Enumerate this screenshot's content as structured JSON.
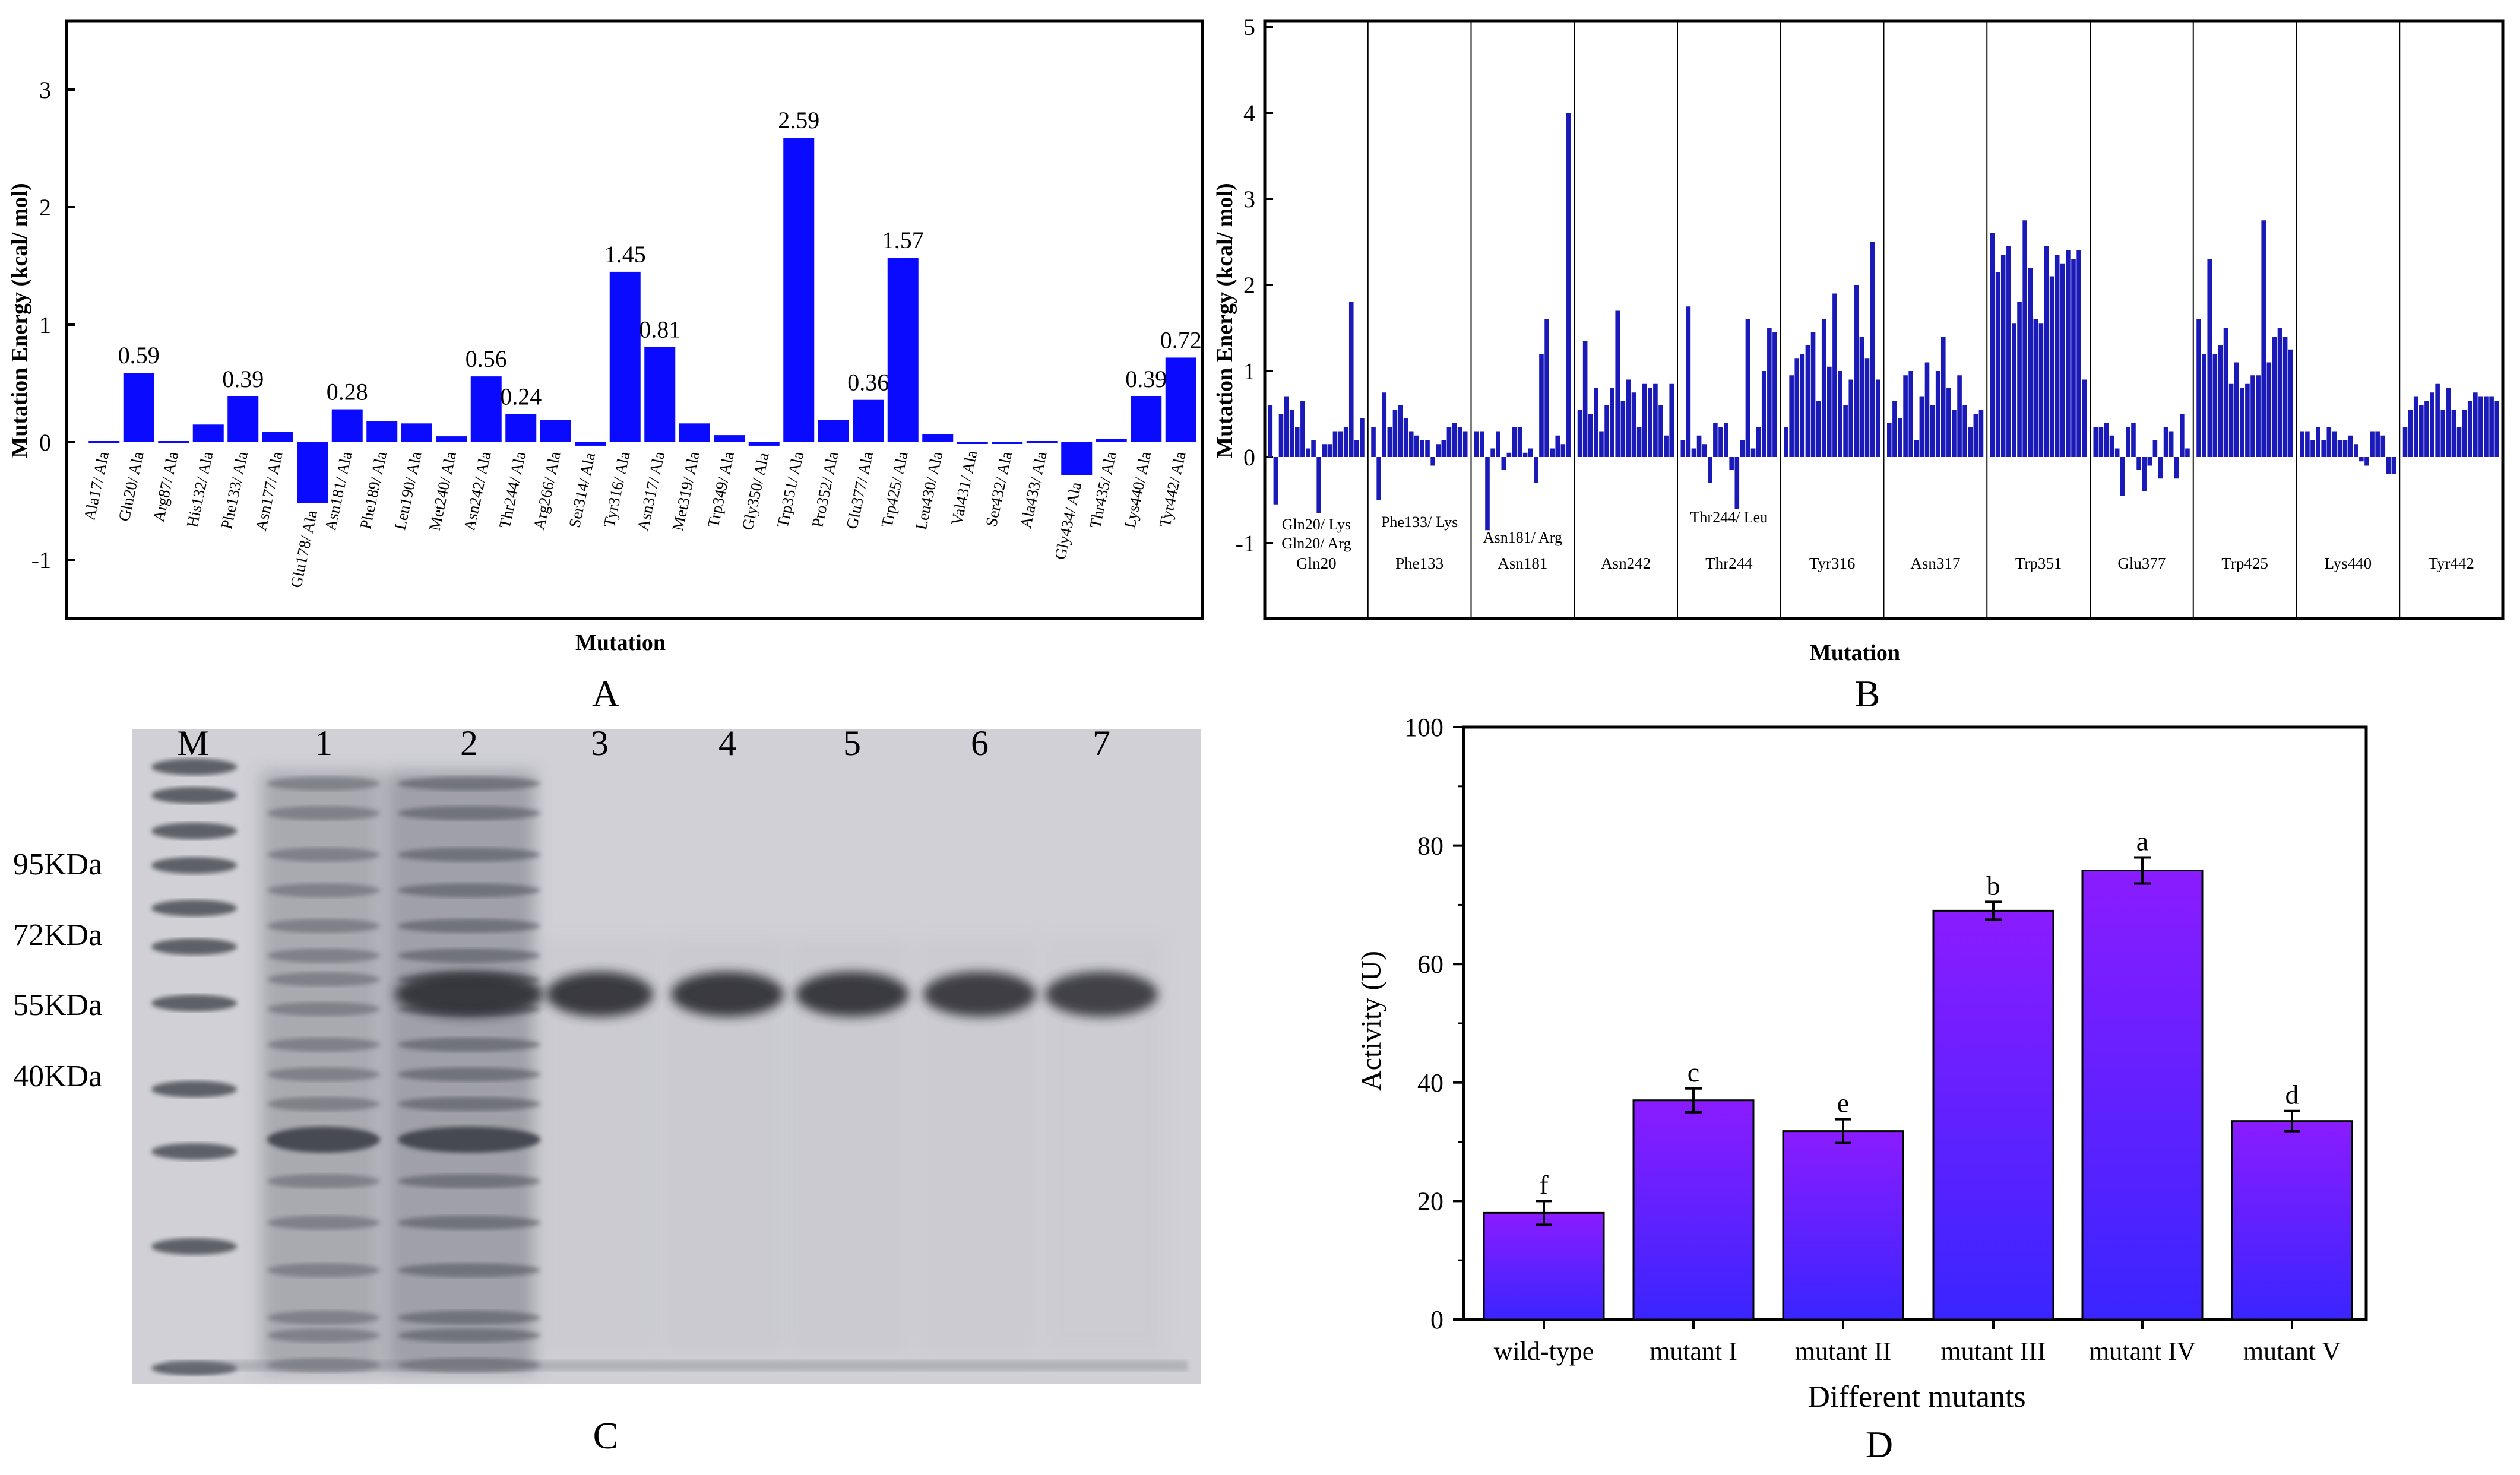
{
  "panel_labels": {
    "a": "A",
    "b": "B",
    "c": "C",
    "d": "D"
  },
  "chart_data": [
    {
      "id": "A",
      "type": "bar",
      "title": "",
      "xlabel": "Mutation",
      "ylabel": "Mutation Energy (kcal/ mol)",
      "ylim": [
        -1.5,
        3.6
      ],
      "yticks": [
        -1,
        0,
        1,
        2,
        3
      ],
      "bar_color": "#0a0aff",
      "categories": [
        "Ala17/ Ala",
        "Gln20/ Ala",
        "Arg87/ Ala",
        "His132/ Ala",
        "Phe133/ Ala",
        "Asn177/ Ala",
        "Glu178/ Ala",
        "Asn181/ Ala",
        "Phe189/ Ala",
        "Leu190/ Ala",
        "Met240/ Ala",
        "Asn242/ Ala",
        "Thr244/ Ala",
        "Arg266/ Ala",
        "Ser314/ Ala",
        "Tyr316/ Ala",
        "Asn317/ Ala",
        "Met319/ Ala",
        "Trp349/ Ala",
        "Gly350/ Ala",
        "Trp351/ Ala",
        "Pro352/ Ala",
        "Glu377/ Ala",
        "Trp425/ Ala",
        "Leu430/ Ala",
        "Val431/ Ala",
        "Ser432/ Ala",
        "Ala433/ Ala",
        "Gly434/ Ala",
        "Thr435/ Ala",
        "Lys440/ Ala",
        "Tyr442/ Ala"
      ],
      "values": [
        0.01,
        0.59,
        0.01,
        0.15,
        0.39,
        0.09,
        -0.52,
        0.28,
        0.18,
        0.16,
        0.05,
        0.56,
        0.24,
        0.19,
        -0.03,
        1.45,
        0.81,
        0.16,
        0.06,
        -0.03,
        2.59,
        0.19,
        0.36,
        1.57,
        0.07,
        -0.01,
        0.0,
        0.01,
        -0.28,
        0.03,
        0.39,
        0.72
      ],
      "data_labels": [
        null,
        "0.59",
        null,
        null,
        "0.39",
        null,
        null,
        "0.28",
        null,
        null,
        null,
        "0.56",
        "0.24",
        null,
        null,
        "1.45",
        "0.81",
        null,
        null,
        null,
        "2.59",
        null,
        "0.36",
        "1.57",
        null,
        null,
        null,
        null,
        null,
        null,
        "0.39",
        "0.72"
      ]
    },
    {
      "id": "B",
      "type": "bar",
      "title": "",
      "xlabel": "Mutation",
      "ylabel": "Mutation Energy (kcal/ mol)",
      "ylim": [
        -1.9,
        5.1
      ],
      "yticks": [
        -1,
        0,
        1,
        2,
        3,
        4,
        5
      ],
      "bar_color": "#1a1ab8",
      "groups": [
        "Gln20",
        "Phe133",
        "Asn181",
        "Asn242",
        "Thr244",
        "Tyr316",
        "Asn317",
        "Trp351",
        "Glu377",
        "Trp425",
        "Lys440",
        "Tyr442"
      ],
      "annotations": [
        {
          "group": 0,
          "lines": [
            "Gln20/ Lys",
            "Gln20/ Arg"
          ]
        },
        {
          "group": 1,
          "lines": [
            "Phe133/ Lys"
          ]
        },
        {
          "group": 2,
          "lines": [
            "Asn181/ Arg"
          ]
        },
        {
          "group": 4,
          "lines": [
            "Thr244/ Leu"
          ]
        }
      ],
      "series": [
        {
          "name": "Gln20",
          "values": [
            0.6,
            -0.55,
            0.5,
            0.7,
            0.55,
            0.35,
            0.65,
            0.1,
            0.2,
            -0.65,
            0.15,
            0.15,
            0.3,
            0.3,
            0.35,
            1.8,
            0.2,
            0.45
          ]
        },
        {
          "name": "Phe133",
          "values": [
            0.35,
            -0.5,
            0.75,
            0.35,
            0.55,
            0.6,
            0.45,
            0.3,
            0.25,
            0.2,
            0.2,
            -0.1,
            0.15,
            0.2,
            0.35,
            0.4,
            0.35,
            0.3
          ]
        },
        {
          "name": "Asn181",
          "values": [
            0.3,
            0.3,
            -0.85,
            0.1,
            0.3,
            -0.15,
            0.05,
            0.35,
            0.35,
            0.05,
            0.1,
            -0.3,
            1.2,
            1.6,
            0.1,
            0.25,
            0.15,
            4.0
          ]
        },
        {
          "name": "Asn242",
          "values": [
            0.55,
            1.35,
            0.5,
            0.8,
            0.3,
            0.6,
            0.8,
            1.7,
            0.65,
            0.9,
            0.75,
            0.35,
            0.85,
            0.8,
            0.85,
            0.6,
            0.25,
            0.85
          ]
        },
        {
          "name": "Thr244",
          "values": [
            0.2,
            1.75,
            0.1,
            0.25,
            0.15,
            -0.3,
            0.4,
            0.35,
            0.4,
            -0.15,
            -0.6,
            0.2,
            1.6,
            0.1,
            0.35,
            1.0,
            1.5,
            1.45
          ]
        },
        {
          "name": "Tyr316",
          "values": [
            0.35,
            0.95,
            1.15,
            1.2,
            1.3,
            1.45,
            0.65,
            1.6,
            1.05,
            1.9,
            1.0,
            0.6,
            0.9,
            2.0,
            1.4,
            1.15,
            2.5,
            0.9
          ]
        },
        {
          "name": "Asn317",
          "values": [
            0.4,
            0.65,
            0.45,
            0.95,
            1.0,
            0.2,
            0.7,
            1.1,
            0.6,
            1.0,
            1.4,
            0.8,
            0.55,
            0.95,
            0.6,
            0.35,
            0.5,
            0.55
          ]
        },
        {
          "name": "Trp351",
          "values": [
            2.6,
            2.15,
            2.35,
            2.45,
            1.55,
            1.8,
            2.75,
            2.2,
            1.6,
            1.55,
            2.45,
            2.1,
            2.35,
            2.25,
            2.4,
            2.3,
            2.4,
            0.9
          ]
        },
        {
          "name": "Glu377",
          "values": [
            0.35,
            0.35,
            0.4,
            0.25,
            0.1,
            -0.45,
            0.35,
            0.4,
            -0.15,
            -0.4,
            -0.1,
            0.2,
            -0.25,
            0.35,
            0.3,
            -0.25,
            0.5,
            0.1
          ]
        },
        {
          "name": "Trp425",
          "values": [
            1.6,
            1.2,
            2.3,
            1.2,
            1.3,
            1.5,
            0.85,
            1.1,
            0.8,
            0.85,
            0.95,
            0.95,
            2.75,
            1.1,
            1.4,
            1.5,
            1.4,
            1.25
          ]
        },
        {
          "name": "Lys440",
          "values": [
            0.3,
            0.3,
            0.2,
            0.35,
            0.2,
            0.35,
            0.3,
            0.2,
            0.2,
            0.25,
            0.15,
            -0.05,
            -0.1,
            0.3,
            0.3,
            0.25,
            -0.2,
            -0.2
          ]
        },
        {
          "name": "Tyr442",
          "values": [
            0.35,
            0.55,
            0.7,
            0.6,
            0.65,
            0.75,
            0.85,
            0.55,
            0.8,
            0.55,
            0.35,
            0.55,
            0.65,
            0.75,
            0.7,
            0.7,
            0.7,
            0.65
          ]
        }
      ]
    },
    {
      "id": "D",
      "type": "bar",
      "title": "",
      "xlabel": "Different mutants",
      "ylabel": "Activity (U)",
      "ylim": [
        0,
        100
      ],
      "yticks": [
        0,
        20,
        40,
        60,
        80,
        100
      ],
      "categories": [
        "wild-type",
        "mutant I",
        "mutant II",
        "mutant III",
        "mutant IV",
        "mutant V"
      ],
      "values": [
        18,
        37,
        31.8,
        69,
        75.8,
        33.5
      ],
      "errors": [
        2,
        2,
        2,
        1.5,
        2.2,
        1.7
      ],
      "letters": [
        "f",
        "c",
        "e",
        "b",
        "a",
        "d"
      ],
      "gradient_top": "#8a1cff",
      "gradient_bottom": "#3a25ff"
    }
  ],
  "gel": {
    "lane_labels": [
      "M",
      "1",
      "2",
      "3",
      "4",
      "5",
      "6",
      "7"
    ],
    "marker_labels": [
      "95KDa",
      "72KDa",
      "55KDa",
      "40KDa"
    ]
  }
}
